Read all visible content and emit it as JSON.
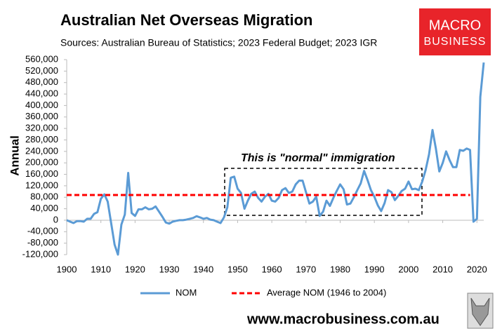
{
  "chart_data": {
    "type": "line",
    "title": "Australian Net Overseas Migration",
    "subtitle": "Sources: Australian Bureau of Statistics; 2023 Federal Budget; 2023 IGR",
    "y_label": "Annual",
    "annotation": "This is \"normal\" immigration",
    "footer": "www.macrobusiness.com.au",
    "logo": [
      "MACRO",
      "BUSINESS"
    ],
    "x": [
      1900,
      1901,
      1902,
      1903,
      1904,
      1905,
      1906,
      1907,
      1908,
      1909,
      1910,
      1911,
      1912,
      1913,
      1914,
      1915,
      1916,
      1917,
      1918,
      1919,
      1920,
      1921,
      1922,
      1923,
      1924,
      1925,
      1926,
      1927,
      1928,
      1929,
      1930,
      1931,
      1932,
      1933,
      1934,
      1935,
      1936,
      1937,
      1938,
      1939,
      1940,
      1941,
      1942,
      1943,
      1944,
      1945,
      1946,
      1947,
      1948,
      1949,
      1950,
      1951,
      1952,
      1953,
      1954,
      1955,
      1956,
      1957,
      1958,
      1959,
      1960,
      1961,
      1962,
      1963,
      1964,
      1965,
      1966,
      1967,
      1968,
      1969,
      1970,
      1971,
      1972,
      1973,
      1974,
      1975,
      1976,
      1977,
      1978,
      1979,
      1980,
      1981,
      1982,
      1983,
      1984,
      1985,
      1986,
      1987,
      1988,
      1989,
      1990,
      1991,
      1992,
      1993,
      1994,
      1995,
      1996,
      1997,
      1998,
      1999,
      2000,
      2001,
      2002,
      2003,
      2004,
      2005,
      2006,
      2007,
      2008,
      2009,
      2010,
      2011,
      2012,
      2013,
      2014,
      2015,
      2016,
      2017,
      2018,
      2019,
      2020,
      2021,
      2022
    ],
    "series": [
      {
        "name": "NOM",
        "color": "#5b9bd5",
        "values": [
          0,
          -5000,
          -10000,
          -3000,
          -3000,
          -5000,
          5000,
          5000,
          22000,
          28000,
          75000,
          90000,
          65000,
          -10000,
          -85000,
          -120000,
          -15000,
          20000,
          165000,
          25000,
          15000,
          38000,
          38000,
          45000,
          38000,
          40000,
          48000,
          30000,
          12000,
          -8000,
          -12000,
          -5000,
          -2000,
          0,
          0,
          2000,
          5000,
          8000,
          14000,
          10000,
          5000,
          8000,
          2000,
          0,
          -5000,
          -10000,
          10000,
          45000,
          148000,
          152000,
          110000,
          95000,
          40000,
          68000,
          92000,
          100000,
          78000,
          65000,
          82000,
          92000,
          68000,
          65000,
          78000,
          105000,
          112000,
          95000,
          100000,
          125000,
          138000,
          138000,
          98000,
          58000,
          65000,
          82000,
          15000,
          30000,
          68000,
          50000,
          78000,
          102000,
          125000,
          108000,
          55000,
          58000,
          80000,
          105000,
          128000,
          172000,
          140000,
          105000,
          82000,
          52000,
          32000,
          60000,
          105000,
          98000,
          70000,
          85000,
          102000,
          110000,
          135000,
          108000,
          110000,
          105000,
          135000,
          175000,
          230000,
          315000,
          250000,
          170000,
          200000,
          240000,
          210000,
          185000,
          185000,
          245000,
          242000,
          250000,
          245000,
          -5000,
          5000,
          430000,
          550000
        ]
      },
      {
        "name": "Average NOM (1946 to 2004)",
        "color": "#ff0000",
        "value": 88000,
        "dashed": true
      }
    ],
    "xlim": [
      1900,
      2022
    ],
    "xticks": [
      1900,
      1910,
      1920,
      1930,
      1940,
      1950,
      1960,
      1970,
      1980,
      1990,
      2000,
      2010,
      2020
    ],
    "ylim": [
      -120000,
      560000
    ],
    "yticks": [
      {
        "value": -120000,
        "label": "-120,000"
      },
      {
        "value": -80000,
        "label": "-80,000"
      },
      {
        "value": -40000,
        "label": "-40,000"
      },
      0,
      {
        "value": 40000,
        "label": "40,000"
      },
      {
        "value": 80000,
        "label": "80,000"
      },
      {
        "value": 120000,
        "label": "120,000"
      },
      {
        "value": 160000,
        "label": "160,000"
      },
      {
        "value": 200000,
        "label": "200,000"
      },
      {
        "value": 240000,
        "label": "240,000"
      },
      {
        "value": 280000,
        "label": "280,000"
      },
      {
        "value": 320000,
        "label": "320,000"
      },
      {
        "value": 360000,
        "label": "360,000"
      },
      {
        "value": 400000,
        "label": "400,000"
      },
      {
        "value": 440000,
        "label": "440,000"
      },
      {
        "value": 480000,
        "label": "480,000"
      },
      {
        "value": 520000,
        "label": "520,000"
      },
      {
        "value": 560000,
        "label": "560,000"
      }
    ],
    "grid": false,
    "legend": "bottom"
  }
}
